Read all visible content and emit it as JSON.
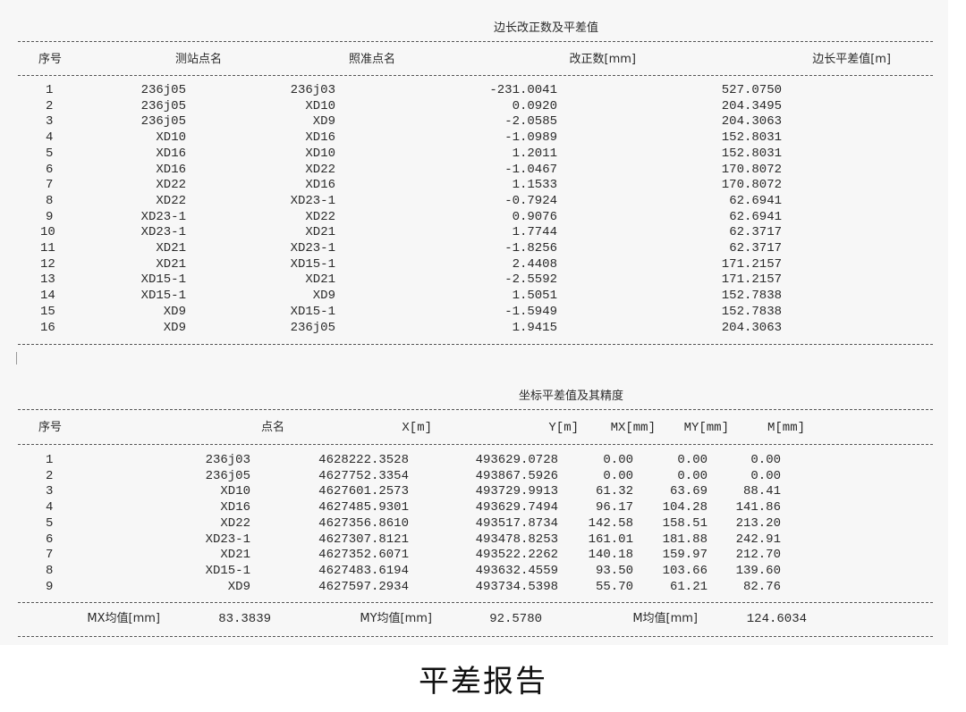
{
  "table1": {
    "title": "边长改正数及平差值",
    "headers": [
      "序号",
      "测站点名",
      "照准点名",
      "改正数[mm]",
      "边长平差值[m]"
    ],
    "rows": [
      [
        "1",
        "236j05",
        "236j03",
        "-231.0041",
        "527.0750"
      ],
      [
        "2",
        "236j05",
        "XD10",
        "0.0920",
        "204.3495"
      ],
      [
        "3",
        "236j05",
        "XD9",
        "-2.0585",
        "204.3063"
      ],
      [
        "4",
        "XD10",
        "XD16",
        "-1.0989",
        "152.8031"
      ],
      [
        "5",
        "XD16",
        "XD10",
        "1.2011",
        "152.8031"
      ],
      [
        "6",
        "XD16",
        "XD22",
        "-1.0467",
        "170.8072"
      ],
      [
        "7",
        "XD22",
        "XD16",
        "1.1533",
        "170.8072"
      ],
      [
        "8",
        "XD22",
        "XD23-1",
        "-0.7924",
        "62.6941"
      ],
      [
        "9",
        "XD23-1",
        "XD22",
        "0.9076",
        "62.6941"
      ],
      [
        "10",
        "XD23-1",
        "XD21",
        "1.7744",
        "62.3717"
      ],
      [
        "11",
        "XD21",
        "XD23-1",
        "-1.8256",
        "62.3717"
      ],
      [
        "12",
        "XD21",
        "XD15-1",
        "2.4408",
        "171.2157"
      ],
      [
        "13",
        "XD15-1",
        "XD21",
        "-2.5592",
        "171.2157"
      ],
      [
        "14",
        "XD15-1",
        "XD9",
        "1.5051",
        "152.7838"
      ],
      [
        "15",
        "XD9",
        "XD15-1",
        "-1.5949",
        "152.7838"
      ],
      [
        "16",
        "XD9",
        "236j05",
        "1.9415",
        "204.3063"
      ]
    ]
  },
  "table2": {
    "title": "坐标平差值及其精度",
    "headers": [
      "序号",
      "点名",
      "X[m]",
      "Y[m]",
      "MX[mm]",
      "MY[mm]",
      "M[mm]"
    ],
    "rows": [
      [
        "1",
        "236j03",
        "4628222.3528",
        "493629.0728",
        "0.00",
        "0.00",
        "0.00"
      ],
      [
        "2",
        "236j05",
        "4627752.3354",
        "493867.5926",
        "0.00",
        "0.00",
        "0.00"
      ],
      [
        "3",
        "XD10",
        "4627601.2573",
        "493729.9913",
        "61.32",
        "63.69",
        "88.41"
      ],
      [
        "4",
        "XD16",
        "4627485.9301",
        "493629.7494",
        "96.17",
        "104.28",
        "141.86"
      ],
      [
        "5",
        "XD22",
        "4627356.8610",
        "493517.8734",
        "142.58",
        "158.51",
        "213.20"
      ],
      [
        "6",
        "XD23-1",
        "4627307.8121",
        "493478.8253",
        "161.01",
        "181.88",
        "242.91"
      ],
      [
        "7",
        "XD21",
        "4627352.6071",
        "493522.2262",
        "140.18",
        "159.97",
        "212.70"
      ],
      [
        "8",
        "XD15-1",
        "4627483.6194",
        "493632.4559",
        "93.50",
        "103.66",
        "139.60"
      ],
      [
        "9",
        "XD9",
        "4627597.2934",
        "493734.5398",
        "55.70",
        "61.21",
        "82.76"
      ]
    ],
    "summary": {
      "mx_label": "MX均值[mm]",
      "mx_value": "83.3839",
      "my_label": "MY均值[mm]",
      "my_value": "92.5780",
      "m_label": "M均值[mm]",
      "m_value": "124.6034"
    }
  },
  "caption": "平差报告"
}
